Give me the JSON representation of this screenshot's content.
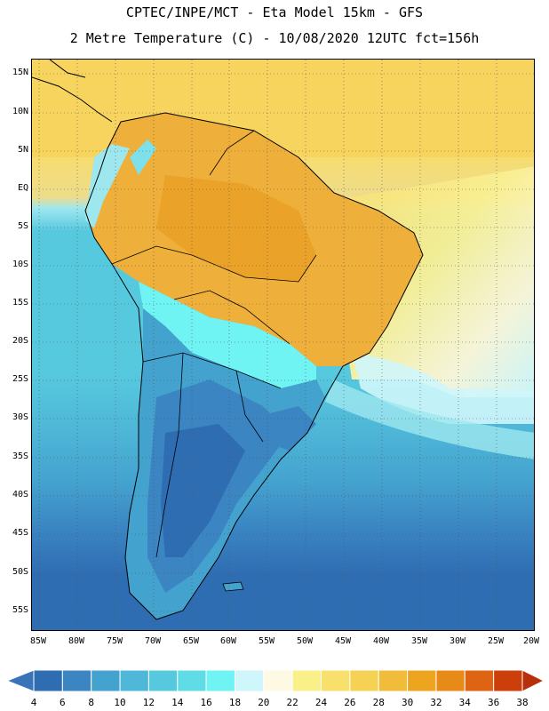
{
  "header": {
    "title_line1": "CPTEC/INPE/MCT  -   Eta Model 15km  -  GFS",
    "title_line2": "2 Metre Temperature (C) - 10/08/2020 12UTC fct=156h"
  },
  "map": {
    "lat_labels": [
      "15N",
      "10N",
      "5N",
      "EQ",
      "5S",
      "10S",
      "15S",
      "20S",
      "25S",
      "30S",
      "35S",
      "40S",
      "45S",
      "50S",
      "55S"
    ],
    "lon_labels": [
      "85W",
      "80W",
      "75W",
      "70W",
      "65W",
      "60W",
      "55W",
      "50W",
      "45W",
      "40W",
      "35W",
      "30W",
      "25W",
      "20W"
    ],
    "grid": "dotted",
    "coastline_color": "#000000"
  },
  "colorbar": {
    "labels": [
      "4",
      "6",
      "8",
      "10",
      "12",
      "14",
      "16",
      "18",
      "20",
      "22",
      "24",
      "26",
      "28",
      "30",
      "32",
      "34",
      "36",
      "38"
    ],
    "colors": [
      "#3a74b8",
      "#2f6db3",
      "#3a85c2",
      "#44a2cf",
      "#4fb8d8",
      "#56c9de",
      "#5fdce6",
      "#6ff3f3",
      "#cff6fb",
      "#fdf9e3",
      "#f9f08a",
      "#f8e06c",
      "#f5d154",
      "#f0bc3a",
      "#eda51f",
      "#e88a18",
      "#de6312",
      "#cc3f0b",
      "#b8300a"
    ]
  }
}
